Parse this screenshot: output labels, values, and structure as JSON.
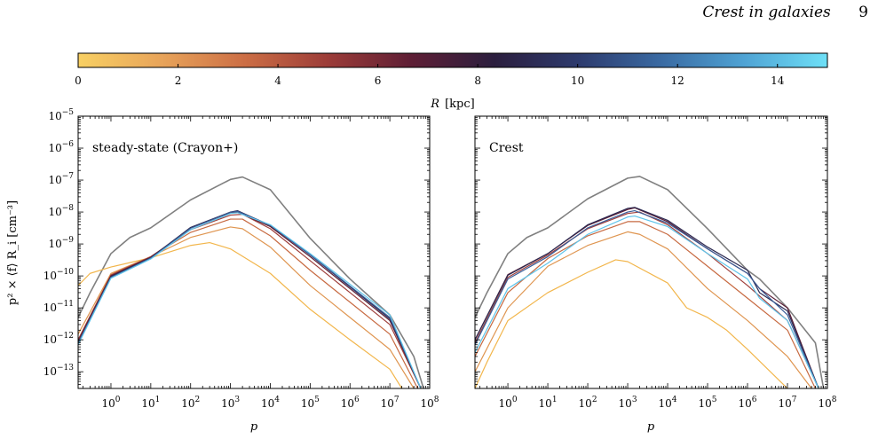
{
  "page_header": {
    "running_title": "Crest in galaxies",
    "page_number": "9"
  },
  "colorbar": {
    "label_symbol": "R",
    "label_unit": "[kpc]",
    "range": [
      0,
      15
    ],
    "ticks": [
      "0",
      "2",
      "4",
      "6",
      "8",
      "10",
      "12",
      "14"
    ],
    "colormap": [
      "#f8d063",
      "#e8a45a",
      "#cc6e45",
      "#9c3c38",
      "#5e1e35",
      "#2b1e3e",
      "#2d3a6d",
      "#3a6aa2",
      "#4fa3d4",
      "#6ee0f7"
    ]
  },
  "y_axis_label": "p² × ⟨f⟩ R_i [cm⁻³]",
  "chart_data": [
    {
      "type": "line",
      "panel_label": "steady-state (Crayon+)",
      "xlabel": "p",
      "xscale": "log",
      "yscale": "log",
      "xlim": [
        0.15,
        100000000.0
      ],
      "ylim": [
        3e-14,
        1e-05
      ],
      "x_ticks": [
        "10^0",
        "10^1",
        "10^2",
        "10^3",
        "10^4",
        "10^5",
        "10^6",
        "10^7",
        "10^8"
      ],
      "y_ticks": [
        "10^-5",
        "10^-6",
        "10^-7",
        "10^-8",
        "10^-9",
        "10^-10",
        "10^-11",
        "10^-12",
        "10^-13"
      ],
      "series": [
        {
          "color": "#808080",
          "points": [
            [
              0.15,
              5e-12
            ],
            [
              0.3,
              3e-11
            ],
            [
              1,
              5e-10
            ],
            [
              3,
              1.6e-09
            ],
            [
              10,
              3.2e-09
            ],
            [
              100,
              2.4e-08
            ],
            [
              1000,
              1.05e-07
            ],
            [
              2000,
              1.25e-07
            ],
            [
              10000,
              5e-08
            ],
            [
              100000,
              1.5e-09
            ],
            [
              1000000,
              8e-11
            ],
            [
              10000000,
              6e-12
            ],
            [
              40000000,
              3e-13
            ],
            [
              70000000,
              3e-14
            ]
          ]
        },
        {
          "color": "#f2b64c",
          "points": [
            [
              0.15,
              5e-11
            ],
            [
              0.3,
              1.2e-10
            ],
            [
              1,
              1.9e-10
            ],
            [
              10,
              3.7e-10
            ],
            [
              100,
              9e-10
            ],
            [
              300,
              1.1e-09
            ],
            [
              1000,
              7e-10
            ],
            [
              10000,
              1.2e-10
            ],
            [
              100000,
              9e-12
            ],
            [
              1000000,
              1e-12
            ],
            [
              10000000,
              1.2e-13
            ],
            [
              20000000,
              3e-14
            ]
          ]
        },
        {
          "color": "#df9550",
          "points": [
            [
              0.15,
              1.5e-12
            ],
            [
              1,
              1.2e-10
            ],
            [
              10,
              4e-10
            ],
            [
              100,
              1.6e-09
            ],
            [
              1000,
              3.4e-09
            ],
            [
              2000,
              3e-09
            ],
            [
              10000,
              8e-10
            ],
            [
              100000,
              5e-11
            ],
            [
              1000000,
              5e-12
            ],
            [
              10000000,
              5e-13
            ],
            [
              40000000,
              3e-14
            ]
          ]
        },
        {
          "color": "#c76a42",
          "points": [
            [
              0.15,
              1e-12
            ],
            [
              1,
              1.1e-10
            ],
            [
              10,
              4e-10
            ],
            [
              100,
              2.3e-09
            ],
            [
              1000,
              6e-09
            ],
            [
              2000,
              6e-09
            ],
            [
              10000,
              1.8e-09
            ],
            [
              100000,
              1.5e-10
            ],
            [
              1000000,
              1.5e-11
            ],
            [
              10000000,
              1.5e-12
            ],
            [
              50000000,
              3e-14
            ]
          ]
        },
        {
          "color": "#9e3e3a",
          "points": [
            [
              0.15,
              1e-12
            ],
            [
              1,
              1.05e-10
            ],
            [
              10,
              4e-10
            ],
            [
              100,
              2.8e-09
            ],
            [
              1000,
              8e-09
            ],
            [
              2000,
              8.5e-09
            ],
            [
              10000,
              3e-09
            ],
            [
              100000,
              3e-10
            ],
            [
              1000000,
              3e-11
            ],
            [
              10000000,
              3e-12
            ],
            [
              60000000,
              3e-14
            ]
          ]
        },
        {
          "color": "#5a1c34",
          "points": [
            [
              0.15,
              9e-13
            ],
            [
              1,
              1e-10
            ],
            [
              10,
              3.8e-10
            ],
            [
              100,
              3.2e-09
            ],
            [
              1000,
              9.5e-09
            ],
            [
              1500,
              1e-08
            ],
            [
              10000,
              3.5e-09
            ],
            [
              100000,
              4e-10
            ],
            [
              1000000,
              4e-11
            ],
            [
              10000000,
              4e-12
            ],
            [
              60000000,
              3e-14
            ]
          ]
        },
        {
          "color": "#2c2a52",
          "points": [
            [
              0.15,
              8e-13
            ],
            [
              1,
              9.5e-11
            ],
            [
              10,
              3.7e-10
            ],
            [
              100,
              3.3e-09
            ],
            [
              1000,
              1e-08
            ],
            [
              1500,
              1.1e-08
            ],
            [
              10000,
              3.8e-09
            ],
            [
              100000,
              4.5e-10
            ],
            [
              1000000,
              4.5e-11
            ],
            [
              10000000,
              4.5e-12
            ],
            [
              60000000,
              3e-14
            ]
          ]
        },
        {
          "color": "#3a5d98",
          "points": [
            [
              0.15,
              8e-13
            ],
            [
              1,
              9e-11
            ],
            [
              10,
              3.6e-10
            ],
            [
              100,
              3.1e-09
            ],
            [
              1000,
              9.8e-09
            ],
            [
              1500,
              1.05e-08
            ],
            [
              10000,
              3.9e-09
            ],
            [
              100000,
              4.6e-10
            ],
            [
              1000000,
              4.8e-11
            ],
            [
              10000000,
              5e-12
            ],
            [
              60000000,
              3e-14
            ]
          ]
        },
        {
          "color": "#5fc4ea",
          "points": [
            [
              0.15,
              7e-13
            ],
            [
              1,
              8.5e-11
            ],
            [
              10,
              3.4e-10
            ],
            [
              100,
              2.8e-09
            ],
            [
              1000,
              9e-09
            ],
            [
              1500,
              9.5e-09
            ],
            [
              10000,
              4e-09
            ],
            [
              100000,
              5e-10
            ],
            [
              1000000,
              5.5e-11
            ],
            [
              10000000,
              6e-12
            ],
            [
              60000000,
              3e-14
            ]
          ]
        }
      ]
    },
    {
      "type": "line",
      "panel_label": "Crest",
      "xlabel": "p",
      "xscale": "log",
      "yscale": "log",
      "xlim": [
        0.15,
        100000000.0
      ],
      "ylim": [
        3e-14,
        1e-05
      ],
      "x_ticks": [
        "10^0",
        "10^1",
        "10^2",
        "10^3",
        "10^4",
        "10^5",
        "10^6",
        "10^7",
        "10^8"
      ],
      "y_ticks": [],
      "series": [
        {
          "color": "#808080",
          "points": [
            [
              0.15,
              5e-12
            ],
            [
              0.3,
              3e-11
            ],
            [
              1,
              5e-10
            ],
            [
              3,
              1.6e-09
            ],
            [
              10,
              3.2e-09
            ],
            [
              100,
              2.6e-08
            ],
            [
              1000,
              1.15e-07
            ],
            [
              2000,
              1.3e-07
            ],
            [
              10000,
              5e-08
            ],
            [
              100000,
              3e-09
            ],
            [
              1000000,
              1.5e-10
            ],
            [
              2000000,
              8e-11
            ],
            [
              10000000,
              1e-11
            ],
            [
              50000000,
              8e-13
            ],
            [
              80000000,
              3e-14
            ]
          ]
        },
        {
          "color": "#f2b64c",
          "points": [
            [
              0.15,
              3e-14
            ],
            [
              0.3,
              2e-13
            ],
            [
              1,
              4e-12
            ],
            [
              10,
              3e-11
            ],
            [
              100,
              1.3e-10
            ],
            [
              500,
              3.2e-10
            ],
            [
              1000,
              2.8e-10
            ],
            [
              10000,
              6e-11
            ],
            [
              30000,
              1e-11
            ],
            [
              100000,
              5e-12
            ],
            [
              300000,
              2e-12
            ],
            [
              1000000,
              5e-13
            ],
            [
              10000000,
              3e-14
            ]
          ]
        },
        {
          "color": "#df9550",
          "points": [
            [
              0.15,
              1e-13
            ],
            [
              1,
              1e-11
            ],
            [
              10,
              2e-10
            ],
            [
              100,
              9e-10
            ],
            [
              1000,
              2.4e-09
            ],
            [
              2000,
              2e-09
            ],
            [
              10000,
              7e-10
            ],
            [
              100000,
              4e-11
            ],
            [
              1000000,
              4e-12
            ],
            [
              10000000,
              3e-13
            ],
            [
              40000000,
              3e-14
            ]
          ]
        },
        {
          "color": "#c76a42",
          "points": [
            [
              0.15,
              3e-13
            ],
            [
              1,
              3e-11
            ],
            [
              10,
              3.5e-10
            ],
            [
              100,
              1.8e-09
            ],
            [
              1000,
              5e-09
            ],
            [
              2000,
              5e-09
            ],
            [
              10000,
              2e-09
            ],
            [
              100000,
              2e-10
            ],
            [
              1000000,
              2e-11
            ],
            [
              10000000,
              2e-12
            ],
            [
              50000000,
              3e-14
            ]
          ]
        },
        {
          "color": "#9e3e3a",
          "points": [
            [
              0.15,
              8e-13
            ],
            [
              1,
              9e-11
            ],
            [
              10,
              4.5e-10
            ],
            [
              100,
              3e-09
            ],
            [
              1000,
              9e-09
            ],
            [
              2000,
              1e-08
            ],
            [
              10000,
              4e-09
            ],
            [
              100000,
              5e-10
            ],
            [
              1000000,
              5e-11
            ],
            [
              10000000,
              4e-12
            ],
            [
              60000000,
              3e-14
            ]
          ]
        },
        {
          "color": "#5a1c34",
          "points": [
            [
              0.15,
              1e-12
            ],
            [
              1,
              1.1e-10
            ],
            [
              10,
              5e-10
            ],
            [
              100,
              3.8e-09
            ],
            [
              1000,
              1.2e-08
            ],
            [
              1500,
              1.35e-08
            ],
            [
              10000,
              5e-09
            ],
            [
              100000,
              7e-10
            ],
            [
              1000000,
              1.2e-10
            ],
            [
              2000000,
              4e-11
            ],
            [
              10000000,
              1e-11
            ],
            [
              60000000,
              3e-14
            ]
          ]
        },
        {
          "color": "#2c2a52",
          "points": [
            [
              0.15,
              1e-12
            ],
            [
              1,
              1.05e-10
            ],
            [
              10,
              5e-10
            ],
            [
              100,
              4e-09
            ],
            [
              1000,
              1.3e-08
            ],
            [
              1500,
              1.4e-08
            ],
            [
              10000,
              5.5e-09
            ],
            [
              100000,
              8e-10
            ],
            [
              1000000,
              1.5e-10
            ],
            [
              2000000,
              3e-11
            ],
            [
              10000000,
              8e-12
            ],
            [
              60000000,
              3e-14
            ]
          ]
        },
        {
          "color": "#3a5d98",
          "points": [
            [
              0.15,
              7e-13
            ],
            [
              1,
              8e-11
            ],
            [
              10,
              4e-10
            ],
            [
              100,
              3.2e-09
            ],
            [
              1000,
              1e-08
            ],
            [
              1500,
              1.1e-08
            ],
            [
              10000,
              4.5e-09
            ],
            [
              100000,
              7e-10
            ],
            [
              1000000,
              1.2e-10
            ],
            [
              2000000,
              4e-11
            ],
            [
              10000000,
              6e-12
            ],
            [
              60000000,
              3e-14
            ]
          ]
        },
        {
          "color": "#5fc4ea",
          "points": [
            [
              0.15,
              4e-13
            ],
            [
              1,
              4e-11
            ],
            [
              10,
              2.5e-10
            ],
            [
              100,
              2e-09
            ],
            [
              1000,
              7e-09
            ],
            [
              1500,
              7.5e-09
            ],
            [
              10000,
              3.5e-09
            ],
            [
              100000,
              5e-10
            ],
            [
              1000000,
              8e-11
            ],
            [
              2000000,
              2e-11
            ],
            [
              10000000,
              4e-12
            ],
            [
              60000000,
              3e-14
            ]
          ]
        }
      ]
    }
  ]
}
